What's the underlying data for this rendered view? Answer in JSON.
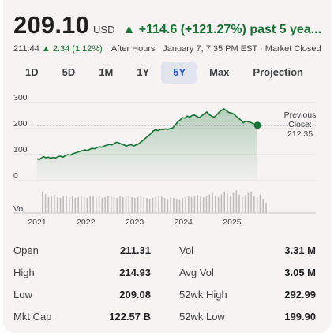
{
  "quote": {
    "price": "209.10",
    "currency": "USD",
    "change": "▲ +114.6 (+121.27%) past 5 yea...",
    "after_hours_price": "211.44",
    "after_hours_change": "▲ 2.34 (1.12%)",
    "after_hours_label": "After Hours · January 7, 7:35 PM EST · Market Closed"
  },
  "tabs": [
    {
      "label": "1D"
    },
    {
      "label": "5D"
    },
    {
      "label": "1M"
    },
    {
      "label": "1Y"
    },
    {
      "label": "5Y",
      "active": true
    },
    {
      "label": "Max"
    },
    {
      "label": "Projection"
    }
  ],
  "chart_data": {
    "type": "line",
    "line_color": "#137333",
    "fill_color": "#137333",
    "y_ticks": [
      0,
      100,
      200,
      300
    ],
    "ylim": [
      0,
      300
    ],
    "x_tick_labels": [
      "2021",
      "2022",
      "2023",
      "2024",
      "2025"
    ],
    "xlim": [
      2021.0,
      2025.6
    ],
    "previous_close": {
      "label_line1": "Previous",
      "label_line2": "Close:",
      "value": "212.35",
      "y": 212.35
    },
    "series": [
      {
        "values": [
          [
            2021.0,
            85
          ],
          [
            2021.04,
            80
          ],
          [
            2021.08,
            86
          ],
          [
            2021.13,
            92
          ],
          [
            2021.18,
            88
          ],
          [
            2021.23,
            90
          ],
          [
            2021.28,
            86
          ],
          [
            2021.33,
            89
          ],
          [
            2021.38,
            87
          ],
          [
            2021.43,
            92
          ],
          [
            2021.48,
            94
          ],
          [
            2021.53,
            90
          ],
          [
            2021.58,
            96
          ],
          [
            2021.63,
            100
          ],
          [
            2021.68,
            98
          ],
          [
            2021.73,
            103
          ],
          [
            2021.78,
            106
          ],
          [
            2021.83,
            109
          ],
          [
            2021.88,
            112
          ],
          [
            2021.93,
            115
          ],
          [
            2021.98,
            118
          ],
          [
            2022.03,
            116
          ],
          [
            2022.08,
            120
          ],
          [
            2022.13,
            124
          ],
          [
            2022.18,
            122
          ],
          [
            2022.23,
            127
          ],
          [
            2022.28,
            130
          ],
          [
            2022.33,
            128
          ],
          [
            2022.38,
            133
          ],
          [
            2022.43,
            136
          ],
          [
            2022.48,
            139
          ],
          [
            2022.53,
            137
          ],
          [
            2022.58,
            142
          ],
          [
            2022.63,
            147
          ],
          [
            2022.68,
            145
          ],
          [
            2022.73,
            140
          ],
          [
            2022.78,
            137
          ],
          [
            2022.83,
            133
          ],
          [
            2022.88,
            136
          ],
          [
            2022.93,
            138
          ],
          [
            2022.98,
            133
          ],
          [
            2023.03,
            137
          ],
          [
            2023.08,
            141
          ],
          [
            2023.13,
            148
          ],
          [
            2023.18,
            156
          ],
          [
            2023.23,
            164
          ],
          [
            2023.28,
            172
          ],
          [
            2023.33,
            180
          ],
          [
            2023.38,
            190
          ],
          [
            2023.43,
            196
          ],
          [
            2023.48,
            192
          ],
          [
            2023.53,
            197
          ],
          [
            2023.58,
            196
          ],
          [
            2023.63,
            199
          ],
          [
            2023.68,
            197
          ],
          [
            2023.73,
            200
          ],
          [
            2023.78,
            202
          ],
          [
            2023.83,
            212
          ],
          [
            2023.88,
            225
          ],
          [
            2023.93,
            232
          ],
          [
            2023.98,
            242
          ],
          [
            2024.03,
            240
          ],
          [
            2024.08,
            248
          ],
          [
            2024.13,
            244
          ],
          [
            2024.18,
            250
          ],
          [
            2024.23,
            252
          ],
          [
            2024.28,
            246
          ],
          [
            2024.33,
            242
          ],
          [
            2024.38,
            250
          ],
          [
            2024.43,
            257
          ],
          [
            2024.48,
            264
          ],
          [
            2024.53,
            254
          ],
          [
            2024.58,
            248
          ],
          [
            2024.63,
            244
          ],
          [
            2024.68,
            252
          ],
          [
            2024.73,
            262
          ],
          [
            2024.78,
            270
          ],
          [
            2024.83,
            276
          ],
          [
            2024.88,
            270
          ],
          [
            2024.93,
            262
          ],
          [
            2024.98,
            260
          ],
          [
            2025.03,
            256
          ],
          [
            2025.08,
            248
          ],
          [
            2025.13,
            240
          ],
          [
            2025.18,
            232
          ],
          [
            2025.23,
            222
          ],
          [
            2025.28,
            229
          ],
          [
            2025.33,
            226
          ],
          [
            2025.38,
            224
          ],
          [
            2025.43,
            219
          ],
          [
            2025.48,
            215
          ],
          [
            2025.52,
            213
          ]
        ]
      }
    ],
    "volume_label": "Vol",
    "volume": [
      30,
      26,
      22,
      24,
      25,
      22,
      21,
      23,
      24,
      22,
      23,
      21,
      22,
      23,
      22,
      21,
      23,
      24,
      22,
      23,
      21,
      22,
      23,
      24,
      22,
      21,
      23,
      22,
      24,
      23,
      22,
      21,
      22,
      23,
      22,
      21,
      20,
      21,
      22,
      24,
      23,
      21,
      20,
      22,
      21,
      20,
      19,
      21,
      22,
      23,
      22,
      24,
      25,
      23,
      22,
      24,
      26,
      28,
      24,
      22,
      26,
      30,
      27,
      24,
      28,
      32,
      26,
      22,
      25,
      28,
      30,
      24,
      22,
      26,
      20,
      14
    ]
  },
  "stats": [
    {
      "label": "Open",
      "value": "211.31",
      "label2": "Vol",
      "value2": "3.31 M"
    },
    {
      "label": "High",
      "value": "214.93",
      "label2": "Avg Vol",
      "value2": "3.05 M"
    },
    {
      "label": "Low",
      "value": "209.08",
      "label2": "52wk High",
      "value2": "292.99"
    },
    {
      "label": "Mkt Cap",
      "value": "122.57 B",
      "label2": "52wk Low",
      "value2": "199.90"
    }
  ]
}
